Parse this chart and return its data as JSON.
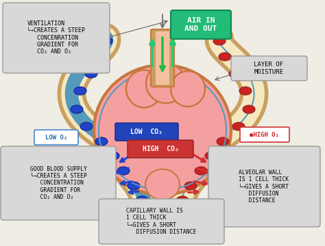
{
  "bg_color": "#f0ede4",
  "alveolus_color": "#f5a0a0",
  "alveolus_border": "#c87840",
  "cap_outer": "#c8a060",
  "cap_inner": "#f5e8c0",
  "cap_wall_line": "#5599bb",
  "rbc_blue_face": "#2244cc",
  "rbc_blue_edge": "#112288",
  "rbc_red_face": "#cc2222",
  "rbc_red_edge": "#882222",
  "box_bg": "#d8d8d8",
  "box_edge": "#999999",
  "green_box": "#22bb77",
  "green_box_edge": "#118855",
  "blue_label_face": "#2244bb",
  "red_label_face": "#cc3333",
  "low_o2_edge": "#4488cc",
  "high_o2_edge": "#cc3333",
  "annotations": {
    "ventilation": "VENTILATION\n└→CREATES A STEEP\n   CONCENRATION\n   GRADIENT FOR\n   CO₂ AND O₂",
    "air_in_out": "AIR IN\nAND OUT",
    "layer_moisture": "LAYER OF\nMOISTURE",
    "low_o2": "LOW O₂",
    "high_o2": "●HIGH O₂",
    "low_co2": "LOW  CO₂",
    "high_co2": "HIGH  CO₂",
    "good_blood": "GOOD BLOOD SUPPLY\n└→CREATES A STEEP\n   CONCENTRATION\n   GRADIENT FOR\n   CO₂ AND O₂",
    "alveolar_wall": "ALVEOLAR WALL\nIS 1 CELL THICK\n└→GIVES A SHORT\n   DIFFUSION\n   DISTANCE",
    "capillary_wall": "CAPILLARY WALL IS\n1 CELL THICK\n└→GIVES A SHORT\n   DIFFUSION DISTANCE"
  }
}
